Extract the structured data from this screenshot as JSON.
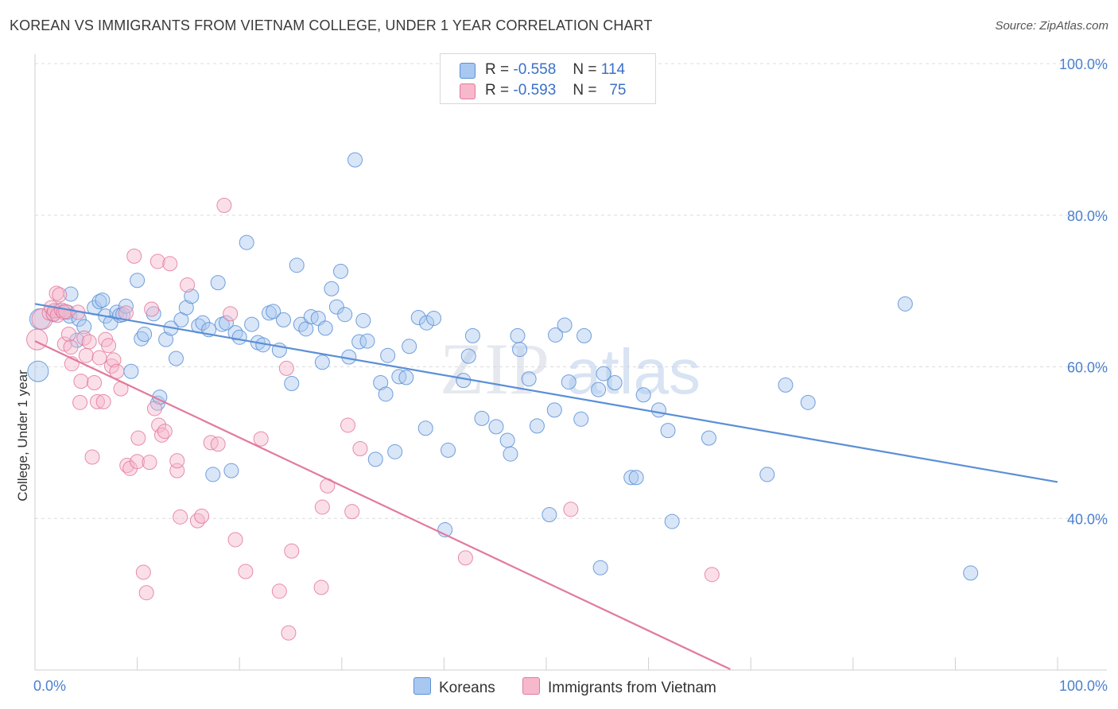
{
  "title": "KOREAN VS IMMIGRANTS FROM VIETNAM COLLEGE, UNDER 1 YEAR CORRELATION CHART",
  "source": "Source: ZipAtlas.com",
  "watermark": {
    "zip": "ZIP",
    "atlas": "atlas"
  },
  "legend": {
    "rows": [
      {
        "r_label": "R =",
        "r_value": "-0.558",
        "n_label": "N =",
        "n_value": "114",
        "color": "#a8c8f0",
        "stroke": "#5b8fd6"
      },
      {
        "r_label": "R =",
        "r_value": "-0.593",
        "n_label": "N =",
        "n_value": "75",
        "color": "#f7b8cc",
        "stroke": "#e27a9c"
      }
    ]
  },
  "bottom_legend": [
    {
      "label": "Koreans",
      "color": "#a8c8f0",
      "stroke": "#5b8fd6"
    },
    {
      "label": "Immigrants from Vietnam",
      "color": "#f7b8cc",
      "stroke": "#e27a9c"
    }
  ],
  "chart_data": {
    "type": "scatter",
    "title": "KOREAN VS IMMIGRANTS FROM VIETNAM COLLEGE, UNDER 1 YEAR CORRELATION CHART",
    "xlabel": "",
    "ylabel": "College, Under 1 year",
    "xlim": [
      0,
      100
    ],
    "ylim": [
      20,
      100
    ],
    "x_tick_labels": [
      "0.0%",
      "100.0%"
    ],
    "y_ticks": [
      40,
      60,
      80,
      100
    ],
    "y_tick_labels": [
      "40.0%",
      "60.0%",
      "80.0%",
      "100.0%"
    ],
    "grid": "horizontal dashed",
    "legend_position": "top-center",
    "series": [
      {
        "name": "Koreans",
        "color": "#5b8fd6",
        "fill": "#a8c8f0",
        "trend": {
          "x": [
            0,
            100
          ],
          "y": [
            68.3,
            44.8
          ]
        },
        "points": [
          [
            0.3,
            59.4
          ],
          [
            0.5,
            66.3
          ],
          [
            1.8,
            66.9
          ],
          [
            2.3,
            67.4
          ],
          [
            3.2,
            67.2
          ],
          [
            3.4,
            66.7
          ],
          [
            3.5,
            69.6
          ],
          [
            4.1,
            63.5
          ],
          [
            4.3,
            66.3
          ],
          [
            4.8,
            65.3
          ],
          [
            5.8,
            67.8
          ],
          [
            6.3,
            68.6
          ],
          [
            6.6,
            68.8
          ],
          [
            6.9,
            66.7
          ],
          [
            7.4,
            65.8
          ],
          [
            8.0,
            67.2
          ],
          [
            8.3,
            66.8
          ],
          [
            8.6,
            66.9
          ],
          [
            8.9,
            68.0
          ],
          [
            9.4,
            59.4
          ],
          [
            10.0,
            71.4
          ],
          [
            10.4,
            63.7
          ],
          [
            10.7,
            64.3
          ],
          [
            11.6,
            67.0
          ],
          [
            12.0,
            55.2
          ],
          [
            12.2,
            56.0
          ],
          [
            12.8,
            63.6
          ],
          [
            13.3,
            65.1
          ],
          [
            13.8,
            61.1
          ],
          [
            14.3,
            66.2
          ],
          [
            14.8,
            67.8
          ],
          [
            15.3,
            69.3
          ],
          [
            16.0,
            65.4
          ],
          [
            16.4,
            65.8
          ],
          [
            17.0,
            64.9
          ],
          [
            17.4,
            45.8
          ],
          [
            17.9,
            71.1
          ],
          [
            18.3,
            65.6
          ],
          [
            18.7,
            65.8
          ],
          [
            19.2,
            46.3
          ],
          [
            19.6,
            64.5
          ],
          [
            20.0,
            63.9
          ],
          [
            20.7,
            76.4
          ],
          [
            21.2,
            65.6
          ],
          [
            21.8,
            63.2
          ],
          [
            22.3,
            62.9
          ],
          [
            22.9,
            67.1
          ],
          [
            23.3,
            67.3
          ],
          [
            23.9,
            62.2
          ],
          [
            24.3,
            66.2
          ],
          [
            25.1,
            57.8
          ],
          [
            25.6,
            73.4
          ],
          [
            26.0,
            65.6
          ],
          [
            26.5,
            65.0
          ],
          [
            27.0,
            66.6
          ],
          [
            27.7,
            66.4
          ],
          [
            28.1,
            60.6
          ],
          [
            28.4,
            65.1
          ],
          [
            29.0,
            70.3
          ],
          [
            29.5,
            67.9
          ],
          [
            29.9,
            72.6
          ],
          [
            30.3,
            66.9
          ],
          [
            30.7,
            61.3
          ],
          [
            31.3,
            87.3
          ],
          [
            31.7,
            63.3
          ],
          [
            32.1,
            66.1
          ],
          [
            32.5,
            63.4
          ],
          [
            33.3,
            47.8
          ],
          [
            33.8,
            57.9
          ],
          [
            34.3,
            56.4
          ],
          [
            34.5,
            61.5
          ],
          [
            35.2,
            48.8
          ],
          [
            35.6,
            58.7
          ],
          [
            36.3,
            58.6
          ],
          [
            36.6,
            62.7
          ],
          [
            37.5,
            66.5
          ],
          [
            38.2,
            51.9
          ],
          [
            38.3,
            65.8
          ],
          [
            39.0,
            66.4
          ],
          [
            40.1,
            38.5
          ],
          [
            40.4,
            49.0
          ],
          [
            41.9,
            58.2
          ],
          [
            42.4,
            61.4
          ],
          [
            42.8,
            64.1
          ],
          [
            43.7,
            53.2
          ],
          [
            45.1,
            52.1
          ],
          [
            46.2,
            50.3
          ],
          [
            46.5,
            48.5
          ],
          [
            47.2,
            64.1
          ],
          [
            47.4,
            62.3
          ],
          [
            48.3,
            58.4
          ],
          [
            49.1,
            52.2
          ],
          [
            50.3,
            40.5
          ],
          [
            50.8,
            54.3
          ],
          [
            50.9,
            64.2
          ],
          [
            51.8,
            65.5
          ],
          [
            52.2,
            58.0
          ],
          [
            53.4,
            53.1
          ],
          [
            53.7,
            64.1
          ],
          [
            55.1,
            57.0
          ],
          [
            55.6,
            59.1
          ],
          [
            56.7,
            57.9
          ],
          [
            55.3,
            33.5
          ],
          [
            58.3,
            45.4
          ],
          [
            58.8,
            45.4
          ],
          [
            59.5,
            56.3
          ],
          [
            61.0,
            54.3
          ],
          [
            61.9,
            51.6
          ],
          [
            62.3,
            39.6
          ],
          [
            65.9,
            50.6
          ],
          [
            71.6,
            45.8
          ],
          [
            73.4,
            57.6
          ],
          [
            75.6,
            55.3
          ],
          [
            85.1,
            68.3
          ],
          [
            91.5,
            32.8
          ]
        ]
      },
      {
        "name": "Immigrants from Vietnam",
        "color": "#e27a9c",
        "fill": "#f7b8cc",
        "trend": {
          "x": [
            0,
            68
          ],
          "y": [
            63.4,
            20.1
          ]
        },
        "points": [
          [
            0.2,
            63.6
          ],
          [
            0.7,
            66.3
          ],
          [
            1.4,
            67.1
          ],
          [
            1.6,
            67.8
          ],
          [
            1.8,
            67.0
          ],
          [
            1.9,
            67.4
          ],
          [
            2.1,
            69.7
          ],
          [
            2.2,
            66.8
          ],
          [
            2.4,
            69.5
          ],
          [
            2.6,
            67.5
          ],
          [
            2.8,
            67.2
          ],
          [
            2.9,
            63.0
          ],
          [
            3.0,
            67.3
          ],
          [
            3.3,
            64.3
          ],
          [
            3.5,
            62.6
          ],
          [
            3.6,
            60.4
          ],
          [
            4.2,
            67.2
          ],
          [
            4.4,
            55.3
          ],
          [
            4.5,
            58.1
          ],
          [
            4.8,
            63.8
          ],
          [
            5.0,
            61.5
          ],
          [
            5.3,
            63.3
          ],
          [
            5.6,
            48.1
          ],
          [
            5.8,
            57.9
          ],
          [
            6.1,
            55.4
          ],
          [
            6.3,
            61.2
          ],
          [
            6.7,
            55.4
          ],
          [
            6.9,
            63.6
          ],
          [
            7.2,
            62.8
          ],
          [
            7.5,
            60.1
          ],
          [
            7.7,
            60.9
          ],
          [
            8.0,
            59.4
          ],
          [
            8.4,
            57.1
          ],
          [
            8.9,
            67.1
          ],
          [
            9.0,
            47.0
          ],
          [
            9.3,
            46.6
          ],
          [
            9.7,
            74.6
          ],
          [
            10.0,
            47.5
          ],
          [
            10.1,
            50.6
          ],
          [
            10.6,
            32.9
          ],
          [
            10.9,
            30.2
          ],
          [
            11.2,
            47.4
          ],
          [
            11.4,
            67.6
          ],
          [
            11.7,
            54.5
          ],
          [
            12.0,
            73.9
          ],
          [
            12.1,
            52.3
          ],
          [
            12.4,
            51.0
          ],
          [
            12.7,
            51.5
          ],
          [
            13.2,
            73.6
          ],
          [
            13.9,
            46.3
          ],
          [
            13.9,
            47.6
          ],
          [
            14.2,
            40.2
          ],
          [
            14.9,
            70.8
          ],
          [
            15.9,
            39.7
          ],
          [
            16.3,
            40.3
          ],
          [
            17.2,
            50.0
          ],
          [
            17.9,
            49.8
          ],
          [
            18.5,
            81.3
          ],
          [
            19.1,
            67.0
          ],
          [
            19.6,
            37.2
          ],
          [
            20.6,
            33.0
          ],
          [
            22.1,
            50.5
          ],
          [
            23.9,
            30.4
          ],
          [
            24.6,
            59.8
          ],
          [
            24.8,
            24.9
          ],
          [
            25.1,
            35.7
          ],
          [
            28.0,
            30.9
          ],
          [
            28.1,
            41.5
          ],
          [
            28.6,
            44.3
          ],
          [
            30.6,
            52.3
          ],
          [
            31.0,
            40.9
          ],
          [
            31.8,
            49.2
          ],
          [
            42.1,
            34.8
          ],
          [
            52.4,
            41.2
          ],
          [
            66.2,
            32.6
          ]
        ]
      }
    ]
  }
}
